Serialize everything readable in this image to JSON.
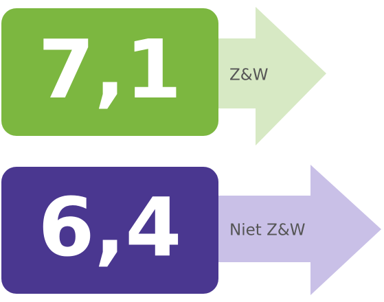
{
  "items": [
    {
      "score": "7,1",
      "label": "Z&W"
    },
    {
      "score": "6,4",
      "label": "Niet Z&W"
    }
  ]
}
